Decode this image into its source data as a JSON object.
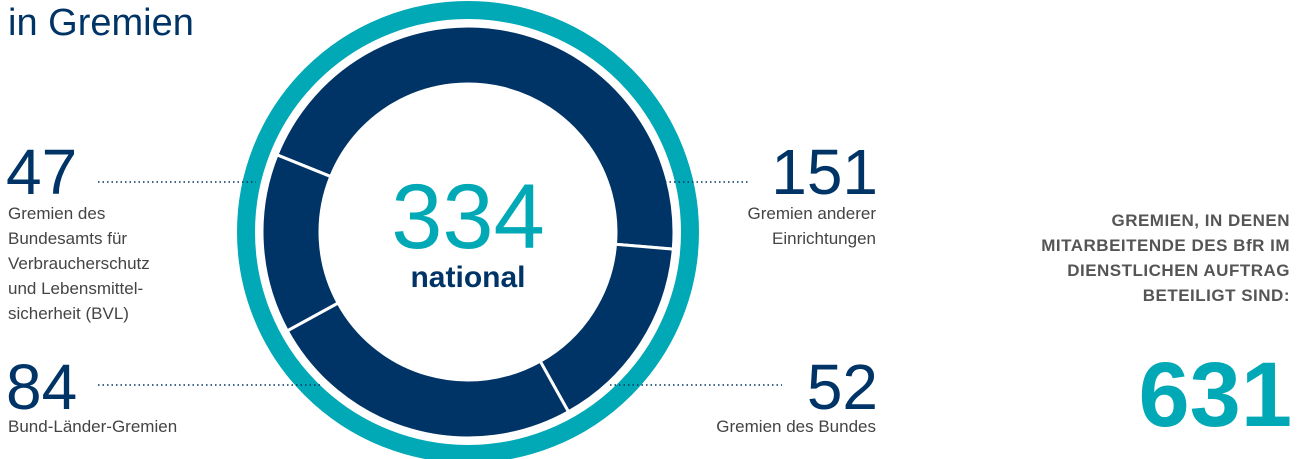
{
  "chart_data": {
    "type": "donut",
    "title": "in Gremien",
    "center_value": 334,
    "center_label": "national",
    "categories": [
      [
        "Gremien anderer",
        "Einrichtungen"
      ],
      [
        "Gremien des Bundes"
      ],
      [
        "Bund-Länder-Gremien"
      ],
      [
        "Gremien des",
        "Bundesamts für",
        "Verbraucherschutz",
        "und Lebensmittel-",
        "sicherheit (BVL)"
      ]
    ],
    "values": [
      151,
      52,
      84,
      47
    ],
    "color": "#003466",
    "ring_color": "#00a9b5",
    "side_text": [
      "GREMIEN, IN DENEN",
      "MITARBEITENDE DES BfR IM",
      "DIENSTLICHEN AUFTRAG",
      "BETEILIGT SIND:"
    ],
    "total": 631
  }
}
